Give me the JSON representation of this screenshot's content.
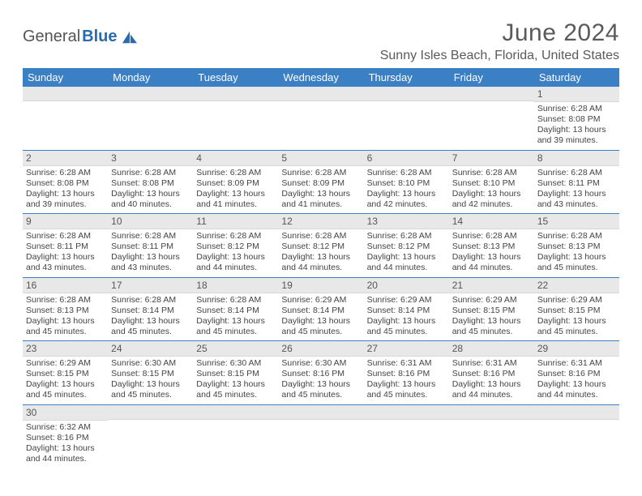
{
  "logo": {
    "text1": "General",
    "text2": "Blue"
  },
  "title": "June 2024",
  "location": "Sunny Isles Beach, Florida, United States",
  "colors": {
    "header_bg": "#3b7fc4",
    "header_text": "#ffffff",
    "daynum_bg": "#e8e8e8",
    "border": "#3b7fc4",
    "logo_gray": "#555555",
    "logo_blue": "#2a6bb0"
  },
  "dayHeaders": [
    "Sunday",
    "Monday",
    "Tuesday",
    "Wednesday",
    "Thursday",
    "Friday",
    "Saturday"
  ],
  "weeks": [
    [
      {
        "day": "",
        "sunrise": "",
        "sunset": "",
        "daylight": ""
      },
      {
        "day": "",
        "sunrise": "",
        "sunset": "",
        "daylight": ""
      },
      {
        "day": "",
        "sunrise": "",
        "sunset": "",
        "daylight": ""
      },
      {
        "day": "",
        "sunrise": "",
        "sunset": "",
        "daylight": ""
      },
      {
        "day": "",
        "sunrise": "",
        "sunset": "",
        "daylight": ""
      },
      {
        "day": "",
        "sunrise": "",
        "sunset": "",
        "daylight": ""
      },
      {
        "day": "1",
        "sunrise": "Sunrise: 6:28 AM",
        "sunset": "Sunset: 8:08 PM",
        "daylight": "Daylight: 13 hours and 39 minutes."
      }
    ],
    [
      {
        "day": "2",
        "sunrise": "Sunrise: 6:28 AM",
        "sunset": "Sunset: 8:08 PM",
        "daylight": "Daylight: 13 hours and 39 minutes."
      },
      {
        "day": "3",
        "sunrise": "Sunrise: 6:28 AM",
        "sunset": "Sunset: 8:08 PM",
        "daylight": "Daylight: 13 hours and 40 minutes."
      },
      {
        "day": "4",
        "sunrise": "Sunrise: 6:28 AM",
        "sunset": "Sunset: 8:09 PM",
        "daylight": "Daylight: 13 hours and 41 minutes."
      },
      {
        "day": "5",
        "sunrise": "Sunrise: 6:28 AM",
        "sunset": "Sunset: 8:09 PM",
        "daylight": "Daylight: 13 hours and 41 minutes."
      },
      {
        "day": "6",
        "sunrise": "Sunrise: 6:28 AM",
        "sunset": "Sunset: 8:10 PM",
        "daylight": "Daylight: 13 hours and 42 minutes."
      },
      {
        "day": "7",
        "sunrise": "Sunrise: 6:28 AM",
        "sunset": "Sunset: 8:10 PM",
        "daylight": "Daylight: 13 hours and 42 minutes."
      },
      {
        "day": "8",
        "sunrise": "Sunrise: 6:28 AM",
        "sunset": "Sunset: 8:11 PM",
        "daylight": "Daylight: 13 hours and 43 minutes."
      }
    ],
    [
      {
        "day": "9",
        "sunrise": "Sunrise: 6:28 AM",
        "sunset": "Sunset: 8:11 PM",
        "daylight": "Daylight: 13 hours and 43 minutes."
      },
      {
        "day": "10",
        "sunrise": "Sunrise: 6:28 AM",
        "sunset": "Sunset: 8:11 PM",
        "daylight": "Daylight: 13 hours and 43 minutes."
      },
      {
        "day": "11",
        "sunrise": "Sunrise: 6:28 AM",
        "sunset": "Sunset: 8:12 PM",
        "daylight": "Daylight: 13 hours and 44 minutes."
      },
      {
        "day": "12",
        "sunrise": "Sunrise: 6:28 AM",
        "sunset": "Sunset: 8:12 PM",
        "daylight": "Daylight: 13 hours and 44 minutes."
      },
      {
        "day": "13",
        "sunrise": "Sunrise: 6:28 AM",
        "sunset": "Sunset: 8:12 PM",
        "daylight": "Daylight: 13 hours and 44 minutes."
      },
      {
        "day": "14",
        "sunrise": "Sunrise: 6:28 AM",
        "sunset": "Sunset: 8:13 PM",
        "daylight": "Daylight: 13 hours and 44 minutes."
      },
      {
        "day": "15",
        "sunrise": "Sunrise: 6:28 AM",
        "sunset": "Sunset: 8:13 PM",
        "daylight": "Daylight: 13 hours and 45 minutes."
      }
    ],
    [
      {
        "day": "16",
        "sunrise": "Sunrise: 6:28 AM",
        "sunset": "Sunset: 8:13 PM",
        "daylight": "Daylight: 13 hours and 45 minutes."
      },
      {
        "day": "17",
        "sunrise": "Sunrise: 6:28 AM",
        "sunset": "Sunset: 8:14 PM",
        "daylight": "Daylight: 13 hours and 45 minutes."
      },
      {
        "day": "18",
        "sunrise": "Sunrise: 6:28 AM",
        "sunset": "Sunset: 8:14 PM",
        "daylight": "Daylight: 13 hours and 45 minutes."
      },
      {
        "day": "19",
        "sunrise": "Sunrise: 6:29 AM",
        "sunset": "Sunset: 8:14 PM",
        "daylight": "Daylight: 13 hours and 45 minutes."
      },
      {
        "day": "20",
        "sunrise": "Sunrise: 6:29 AM",
        "sunset": "Sunset: 8:14 PM",
        "daylight": "Daylight: 13 hours and 45 minutes."
      },
      {
        "day": "21",
        "sunrise": "Sunrise: 6:29 AM",
        "sunset": "Sunset: 8:15 PM",
        "daylight": "Daylight: 13 hours and 45 minutes."
      },
      {
        "day": "22",
        "sunrise": "Sunrise: 6:29 AM",
        "sunset": "Sunset: 8:15 PM",
        "daylight": "Daylight: 13 hours and 45 minutes."
      }
    ],
    [
      {
        "day": "23",
        "sunrise": "Sunrise: 6:29 AM",
        "sunset": "Sunset: 8:15 PM",
        "daylight": "Daylight: 13 hours and 45 minutes."
      },
      {
        "day": "24",
        "sunrise": "Sunrise: 6:30 AM",
        "sunset": "Sunset: 8:15 PM",
        "daylight": "Daylight: 13 hours and 45 minutes."
      },
      {
        "day": "25",
        "sunrise": "Sunrise: 6:30 AM",
        "sunset": "Sunset: 8:15 PM",
        "daylight": "Daylight: 13 hours and 45 minutes."
      },
      {
        "day": "26",
        "sunrise": "Sunrise: 6:30 AM",
        "sunset": "Sunset: 8:16 PM",
        "daylight": "Daylight: 13 hours and 45 minutes."
      },
      {
        "day": "27",
        "sunrise": "Sunrise: 6:31 AM",
        "sunset": "Sunset: 8:16 PM",
        "daylight": "Daylight: 13 hours and 45 minutes."
      },
      {
        "day": "28",
        "sunrise": "Sunrise: 6:31 AM",
        "sunset": "Sunset: 8:16 PM",
        "daylight": "Daylight: 13 hours and 44 minutes."
      },
      {
        "day": "29",
        "sunrise": "Sunrise: 6:31 AM",
        "sunset": "Sunset: 8:16 PM",
        "daylight": "Daylight: 13 hours and 44 minutes."
      }
    ],
    [
      {
        "day": "30",
        "sunrise": "Sunrise: 6:32 AM",
        "sunset": "Sunset: 8:16 PM",
        "daylight": "Daylight: 13 hours and 44 minutes."
      },
      {
        "day": "",
        "sunrise": "",
        "sunset": "",
        "daylight": ""
      },
      {
        "day": "",
        "sunrise": "",
        "sunset": "",
        "daylight": ""
      },
      {
        "day": "",
        "sunrise": "",
        "sunset": "",
        "daylight": ""
      },
      {
        "day": "",
        "sunrise": "",
        "sunset": "",
        "daylight": ""
      },
      {
        "day": "",
        "sunrise": "",
        "sunset": "",
        "daylight": ""
      },
      {
        "day": "",
        "sunrise": "",
        "sunset": "",
        "daylight": ""
      }
    ]
  ]
}
